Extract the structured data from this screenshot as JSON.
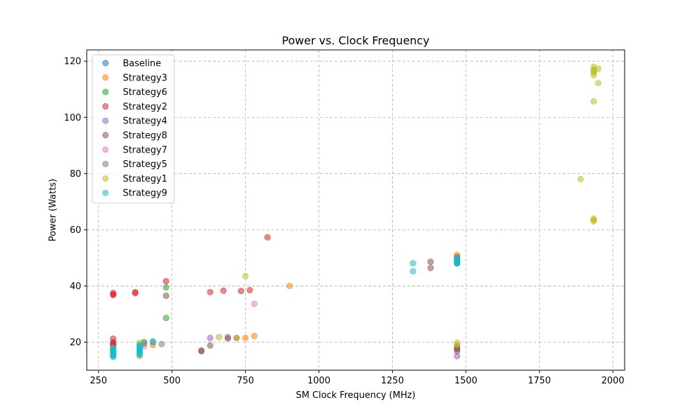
{
  "chart_data": {
    "type": "scatter",
    "title": "Power vs. Clock Frequency",
    "xlabel": "SM Clock Frequency (MHz)",
    "ylabel": "Power (Watts)",
    "xlim": [
      210,
      2040
    ],
    "ylim": [
      10,
      124
    ],
    "xticks": [
      250,
      500,
      750,
      1000,
      1250,
      1500,
      1750,
      2000
    ],
    "yticks": [
      20,
      40,
      60,
      80,
      100,
      120
    ],
    "grid": true,
    "legend_position": "top-left",
    "marker_alpha": 0.55,
    "series": [
      {
        "name": "Baseline",
        "color": "#1f77b4",
        "points": [
          [
            1470,
            48.5
          ],
          [
            1470,
            48.0
          ],
          [
            1470,
            49.0
          ],
          [
            300,
            15.5
          ],
          [
            300,
            16.0
          ]
        ]
      },
      {
        "name": "Strategy3",
        "color": "#ff7f0e",
        "points": [
          [
            900,
            40.0
          ],
          [
            780,
            22.2
          ],
          [
            750,
            21.5
          ],
          [
            435,
            19.0
          ],
          [
            390,
            15.5
          ],
          [
            1470,
            51.0
          ],
          [
            1470,
            50.5
          ],
          [
            300,
            16.0
          ]
        ]
      },
      {
        "name": "Strategy6",
        "color": "#2ca02c",
        "points": [
          [
            480,
            39.5
          ],
          [
            480,
            28.6
          ],
          [
            390,
            16.5
          ],
          [
            405,
            20.0
          ],
          [
            1470,
            49.5
          ],
          [
            300,
            16.5
          ]
        ]
      },
      {
        "name": "Strategy2",
        "color": "#d62728",
        "points": [
          [
            825,
            57.3
          ],
          [
            480,
            41.7
          ],
          [
            300,
            37.5
          ],
          [
            300,
            37.0
          ],
          [
            300,
            36.8
          ],
          [
            375,
            37.8
          ],
          [
            375,
            37.4
          ],
          [
            630,
            37.8
          ],
          [
            675,
            38.3
          ],
          [
            735,
            38.2
          ],
          [
            765,
            38.5
          ],
          [
            300,
            21.2
          ],
          [
            300,
            20.0
          ],
          [
            300,
            19.5
          ],
          [
            300,
            19.0
          ],
          [
            300,
            18.5
          ],
          [
            1470,
            50.0
          ],
          [
            1470,
            49.0
          ]
        ]
      },
      {
        "name": "Strategy4",
        "color": "#9467bd",
        "points": [
          [
            630,
            21.5
          ],
          [
            690,
            21.8
          ],
          [
            1470,
            15.0
          ],
          [
            1470,
            17.5
          ],
          [
            390,
            17.0
          ],
          [
            300,
            17.0
          ]
        ]
      },
      {
        "name": "Strategy8",
        "color": "#8c564b",
        "points": [
          [
            480,
            36.5
          ],
          [
            630,
            18.8
          ],
          [
            600,
            17.0
          ],
          [
            600,
            16.8
          ],
          [
            690,
            21.3
          ],
          [
            720,
            21.5
          ],
          [
            1380,
            48.6
          ],
          [
            1380,
            46.4
          ],
          [
            1470,
            16.8
          ],
          [
            1470,
            17.8
          ],
          [
            1470,
            18.5
          ],
          [
            300,
            17.5
          ],
          [
            390,
            19.0
          ]
        ]
      },
      {
        "name": "Strategy7",
        "color": "#e377c2",
        "points": [
          [
            780,
            33.6
          ],
          [
            405,
            18.5
          ],
          [
            300,
            16.5
          ]
        ]
      },
      {
        "name": "Strategy5",
        "color": "#7f7f7f",
        "points": [
          [
            465,
            19.3
          ],
          [
            435,
            20.0
          ],
          [
            405,
            19.5
          ],
          [
            390,
            18.0
          ],
          [
            300,
            17.0
          ]
        ]
      },
      {
        "name": "Strategy1",
        "color": "#bcbd22",
        "points": [
          [
            1935,
            118.0
          ],
          [
            1935,
            117.0
          ],
          [
            1935,
            116.5
          ],
          [
            1935,
            116.0
          ],
          [
            1935,
            115.0
          ],
          [
            1950,
            117.3
          ],
          [
            1950,
            112.2
          ],
          [
            1935,
            105.7
          ],
          [
            1890,
            78.0
          ],
          [
            1935,
            64.0
          ],
          [
            1935,
            63.5
          ],
          [
            1935,
            63.0
          ],
          [
            750,
            43.5
          ],
          [
            660,
            21.8
          ],
          [
            720,
            21.5
          ],
          [
            1470,
            19.8
          ],
          [
            1470,
            19.0
          ],
          [
            390,
            19.8
          ],
          [
            390,
            15.0
          ],
          [
            300,
            18.0
          ]
        ]
      },
      {
        "name": "Strategy9",
        "color": "#17becf",
        "points": [
          [
            1320,
            48.1
          ],
          [
            1320,
            45.2
          ],
          [
            1470,
            48.0
          ],
          [
            1470,
            48.5
          ],
          [
            1470,
            49.0
          ],
          [
            1470,
            49.5
          ],
          [
            1470,
            50.0
          ],
          [
            435,
            20.3
          ],
          [
            390,
            19.0
          ],
          [
            390,
            18.5
          ],
          [
            390,
            18.0
          ],
          [
            390,
            17.5
          ],
          [
            390,
            17.0
          ],
          [
            390,
            16.5
          ],
          [
            390,
            16.0
          ],
          [
            390,
            15.5
          ],
          [
            300,
            18.0
          ],
          [
            300,
            17.5
          ],
          [
            300,
            17.0
          ],
          [
            300,
            16.5
          ],
          [
            300,
            16.0
          ],
          [
            300,
            15.5
          ],
          [
            300,
            15.0
          ],
          [
            300,
            14.8
          ]
        ]
      }
    ]
  }
}
